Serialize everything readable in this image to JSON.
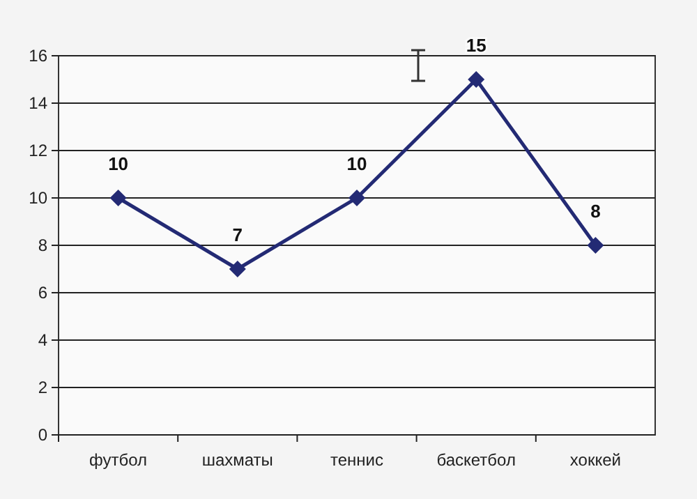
{
  "chart_data": {
    "type": "line",
    "categories": [
      "футбол",
      "шахматы",
      "теннис",
      "баскетбол",
      "хоккей"
    ],
    "series": [
      {
        "color": "#232a74",
        "values": [
          10,
          7,
          10,
          15,
          8
        ]
      }
    ],
    "ylim": [
      0,
      16
    ],
    "yticks": [
      0,
      2,
      4,
      6,
      8,
      10,
      12,
      14,
      16
    ],
    "grid": "y",
    "marker": "diamond",
    "line_style": "solid",
    "data_labels": true
  }
}
